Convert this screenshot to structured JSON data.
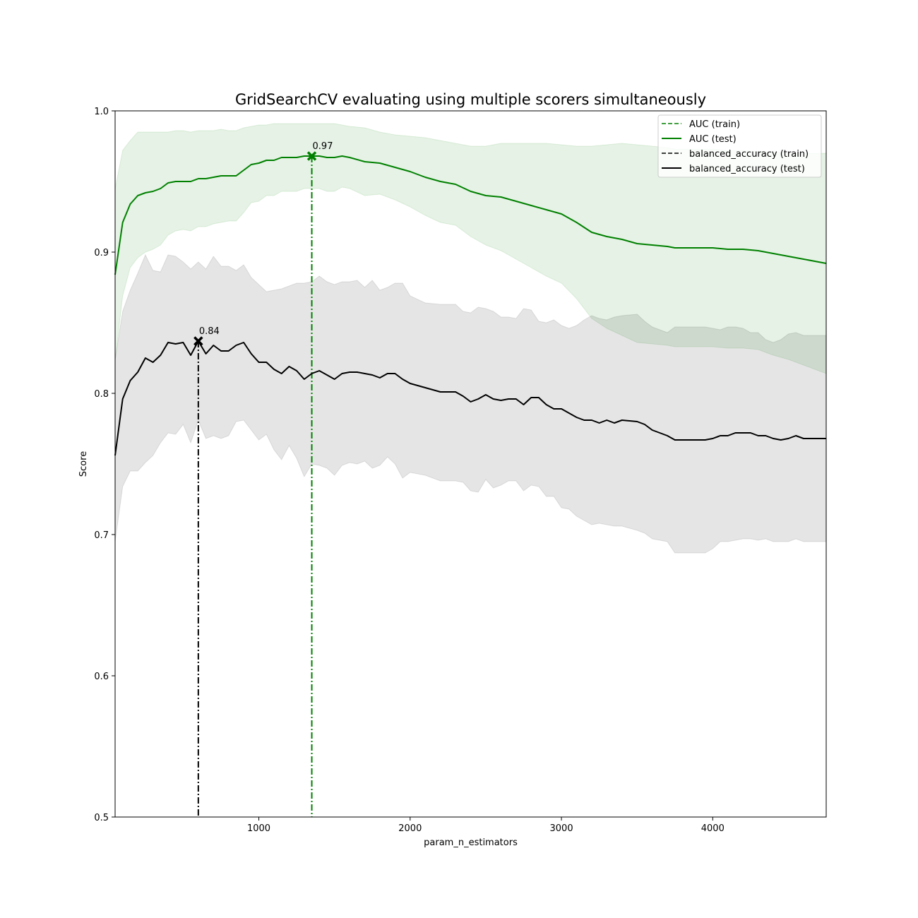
{
  "chart_data": {
    "type": "line",
    "title": "GridSearchCV evaluating using multiple scorers simultaneously",
    "xlabel": "param_n_estimators",
    "ylabel": "Score",
    "xlim": [
      50,
      4750
    ],
    "ylim": [
      0.5,
      1.0
    ],
    "xticks": [
      1000,
      2000,
      3000,
      4000
    ],
    "yticks": [
      0.5,
      0.6,
      0.7,
      0.8,
      0.9,
      1.0
    ],
    "grid": false,
    "legend_position": "top-right",
    "colors": {
      "AUC": "#008000",
      "balanced_accuracy": "#000000"
    },
    "legend": [
      "AUC (train)",
      "AUC (test)",
      "balanced_accuracy (train)",
      "balanced_accuracy (test)"
    ],
    "series": [
      {
        "name": "AUC (test)",
        "scorer": "AUC",
        "x": [
          50,
          100,
          150,
          200,
          250,
          300,
          350,
          400,
          450,
          500,
          550,
          600,
          650,
          700,
          750,
          800,
          850,
          900,
          950,
          1000,
          1050,
          1100,
          1150,
          1200,
          1250,
          1300,
          1350,
          1400,
          1450,
          1500,
          1550,
          1600,
          1700,
          1800,
          1900,
          2000,
          2100,
          2200,
          2300,
          2400,
          2500,
          2600,
          2700,
          2800,
          2900,
          3000,
          3100,
          3200,
          3300,
          3400,
          3500,
          3600,
          3700,
          3750,
          3800,
          3900,
          4000,
          4100,
          4200,
          4300,
          4400,
          4500,
          4600,
          4700,
          4750
        ],
        "mean": [
          0.884,
          0.921,
          0.934,
          0.94,
          0.942,
          0.943,
          0.945,
          0.949,
          0.95,
          0.95,
          0.95,
          0.952,
          0.952,
          0.953,
          0.954,
          0.954,
          0.954,
          0.958,
          0.962,
          0.963,
          0.965,
          0.965,
          0.967,
          0.967,
          0.967,
          0.968,
          0.968,
          0.968,
          0.967,
          0.967,
          0.968,
          0.967,
          0.964,
          0.963,
          0.96,
          0.957,
          0.953,
          0.95,
          0.948,
          0.943,
          0.94,
          0.939,
          0.936,
          0.933,
          0.93,
          0.927,
          0.921,
          0.914,
          0.911,
          0.909,
          0.906,
          0.905,
          0.904,
          0.903,
          0.903,
          0.903,
          0.903,
          0.902,
          0.902,
          0.901,
          0.899,
          0.897,
          0.895,
          0.893,
          0.892
        ],
        "upper": [
          0.945,
          0.972,
          0.979,
          0.985,
          0.985,
          0.985,
          0.985,
          0.985,
          0.986,
          0.986,
          0.985,
          0.986,
          0.986,
          0.986,
          0.987,
          0.986,
          0.986,
          0.988,
          0.989,
          0.99,
          0.99,
          0.991,
          0.991,
          0.991,
          0.991,
          0.991,
          0.991,
          0.991,
          0.991,
          0.991,
          0.99,
          0.989,
          0.988,
          0.985,
          0.983,
          0.982,
          0.981,
          0.979,
          0.977,
          0.975,
          0.975,
          0.977,
          0.977,
          0.977,
          0.977,
          0.976,
          0.975,
          0.975,
          0.976,
          0.977,
          0.976,
          0.975,
          0.974,
          0.973,
          0.973,
          0.973,
          0.973,
          0.972,
          0.972,
          0.971,
          0.971,
          0.97,
          0.97,
          0.97,
          0.97
        ],
        "lower": [
          0.823,
          0.869,
          0.889,
          0.896,
          0.9,
          0.902,
          0.905,
          0.912,
          0.915,
          0.916,
          0.915,
          0.918,
          0.918,
          0.92,
          0.921,
          0.922,
          0.922,
          0.928,
          0.935,
          0.936,
          0.94,
          0.94,
          0.943,
          0.943,
          0.943,
          0.945,
          0.945,
          0.945,
          0.943,
          0.943,
          0.946,
          0.945,
          0.94,
          0.941,
          0.937,
          0.932,
          0.926,
          0.921,
          0.919,
          0.911,
          0.905,
          0.901,
          0.895,
          0.889,
          0.883,
          0.878,
          0.867,
          0.853,
          0.846,
          0.841,
          0.836,
          0.835,
          0.834,
          0.833,
          0.833,
          0.833,
          0.833,
          0.832,
          0.832,
          0.831,
          0.827,
          0.824,
          0.82,
          0.816,
          0.814
        ]
      },
      {
        "name": "balanced_accuracy (test)",
        "scorer": "balanced_accuracy",
        "x": [
          50,
          100,
          150,
          200,
          250,
          300,
          350,
          400,
          450,
          500,
          550,
          600,
          650,
          700,
          750,
          800,
          850,
          900,
          950,
          1000,
          1050,
          1100,
          1150,
          1200,
          1250,
          1300,
          1350,
          1400,
          1450,
          1500,
          1550,
          1600,
          1650,
          1700,
          1750,
          1800,
          1850,
          1900,
          1950,
          2000,
          2100,
          2200,
          2300,
          2350,
          2400,
          2450,
          2500,
          2550,
          2600,
          2650,
          2700,
          2750,
          2800,
          2850,
          2900,
          2950,
          3000,
          3050,
          3100,
          3150,
          3200,
          3250,
          3300,
          3350,
          3400,
          3500,
          3550,
          3600,
          3700,
          3750,
          3800,
          3900,
          3950,
          4000,
          4050,
          4100,
          4150,
          4200,
          4250,
          4300,
          4350,
          4400,
          4450,
          4500,
          4550,
          4600,
          4650,
          4700,
          4750
        ],
        "mean": [
          0.756,
          0.796,
          0.809,
          0.815,
          0.825,
          0.822,
          0.827,
          0.836,
          0.835,
          0.836,
          0.827,
          0.837,
          0.828,
          0.834,
          0.83,
          0.83,
          0.834,
          0.836,
          0.828,
          0.822,
          0.822,
          0.817,
          0.814,
          0.819,
          0.816,
          0.81,
          0.814,
          0.816,
          0.813,
          0.81,
          0.814,
          0.815,
          0.815,
          0.814,
          0.813,
          0.811,
          0.814,
          0.814,
          0.81,
          0.807,
          0.804,
          0.801,
          0.801,
          0.798,
          0.794,
          0.796,
          0.799,
          0.796,
          0.795,
          0.796,
          0.796,
          0.792,
          0.797,
          0.797,
          0.792,
          0.789,
          0.789,
          0.786,
          0.783,
          0.781,
          0.781,
          0.779,
          0.781,
          0.779,
          0.781,
          0.78,
          0.778,
          0.774,
          0.77,
          0.767,
          0.767,
          0.767,
          0.767,
          0.768,
          0.77,
          0.77,
          0.772,
          0.772,
          0.772,
          0.77,
          0.77,
          0.768,
          0.767,
          0.768,
          0.77,
          0.768,
          0.768,
          0.768,
          0.768
        ],
        "upper": [
          0.824,
          0.858,
          0.873,
          0.885,
          0.898,
          0.887,
          0.886,
          0.898,
          0.897,
          0.893,
          0.888,
          0.893,
          0.888,
          0.897,
          0.89,
          0.89,
          0.887,
          0.891,
          0.882,
          0.877,
          0.872,
          0.873,
          0.874,
          0.876,
          0.878,
          0.878,
          0.879,
          0.883,
          0.879,
          0.877,
          0.879,
          0.879,
          0.88,
          0.875,
          0.88,
          0.873,
          0.875,
          0.878,
          0.878,
          0.869,
          0.864,
          0.863,
          0.863,
          0.858,
          0.857,
          0.861,
          0.86,
          0.858,
          0.854,
          0.854,
          0.853,
          0.86,
          0.859,
          0.851,
          0.85,
          0.852,
          0.848,
          0.846,
          0.848,
          0.852,
          0.855,
          0.853,
          0.852,
          0.854,
          0.855,
          0.856,
          0.851,
          0.847,
          0.843,
          0.847,
          0.847,
          0.847,
          0.847,
          0.846,
          0.845,
          0.847,
          0.847,
          0.846,
          0.843,
          0.843,
          0.838,
          0.836,
          0.838,
          0.842,
          0.843,
          0.841,
          0.841,
          0.841,
          0.841
        ],
        "lower": [
          0.695,
          0.734,
          0.745,
          0.745,
          0.751,
          0.756,
          0.765,
          0.772,
          0.771,
          0.778,
          0.765,
          0.781,
          0.768,
          0.77,
          0.768,
          0.77,
          0.78,
          0.781,
          0.774,
          0.767,
          0.771,
          0.76,
          0.753,
          0.763,
          0.754,
          0.741,
          0.75,
          0.749,
          0.747,
          0.742,
          0.749,
          0.751,
          0.75,
          0.752,
          0.747,
          0.749,
          0.755,
          0.75,
          0.74,
          0.744,
          0.742,
          0.738,
          0.738,
          0.737,
          0.731,
          0.73,
          0.739,
          0.733,
          0.735,
          0.738,
          0.738,
          0.731,
          0.735,
          0.734,
          0.727,
          0.727,
          0.719,
          0.718,
          0.713,
          0.71,
          0.707,
          0.708,
          0.707,
          0.706,
          0.706,
          0.703,
          0.701,
          0.697,
          0.695,
          0.687,
          0.687,
          0.687,
          0.687,
          0.69,
          0.695,
          0.695,
          0.696,
          0.697,
          0.697,
          0.696,
          0.697,
          0.695,
          0.695,
          0.695,
          0.697,
          0.695,
          0.695,
          0.695,
          0.695
        ]
      }
    ],
    "best_points": [
      {
        "scorer": "AUC",
        "x": 1350,
        "y": 0.968,
        "label": "0.97"
      },
      {
        "scorer": "balanced_accuracy",
        "x": 600,
        "y": 0.837,
        "label": "0.84"
      }
    ]
  }
}
